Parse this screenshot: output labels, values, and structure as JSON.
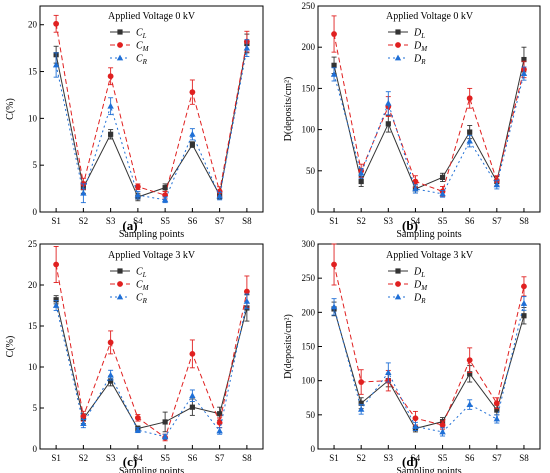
{
  "x_axis_title": "Sampling points",
  "panel_letters": [
    "(a)",
    "(b)",
    "(c)",
    "(d)"
  ],
  "colors": {
    "L": "#333333",
    "M": "#e02020",
    "R": "#1f6fd6"
  },
  "chart_data": [
    {
      "type": "line",
      "legend_title": "Applied Voltage 0 kV",
      "ylabel": "C(%)",
      "xlabel": "Sampling points",
      "categories": [
        "S1",
        "S2",
        "S3",
        "S4",
        "S5",
        "S6",
        "S7",
        "S8"
      ],
      "ylim": [
        0,
        22
      ],
      "yticks": [
        "0",
        "5",
        "10",
        "15",
        "20"
      ],
      "series": [
        {
          "name": "C",
          "sub": "L",
          "values": [
            16.8,
            2.6,
            8.3,
            1.6,
            2.6,
            7.2,
            1.8,
            18.0
          ],
          "err": [
            0.9,
            0.6,
            0.5,
            0.4,
            0.4,
            0.3,
            0.4,
            1.0
          ]
        },
        {
          "name": "C",
          "sub": "M",
          "values": [
            20.1,
            3.0,
            14.5,
            2.7,
            1.8,
            12.8,
            2.2,
            18.2
          ],
          "err": [
            0.9,
            0.6,
            0.9,
            0.3,
            0.4,
            1.3,
            0.5,
            1.1
          ]
        },
        {
          "name": "C",
          "sub": "R",
          "values": [
            15.7,
            2.0,
            11.3,
            1.8,
            1.3,
            8.3,
            1.7,
            17.5
          ],
          "err": [
            1.3,
            1.0,
            0.9,
            0.4,
            0.3,
            0.6,
            0.4,
            0.9
          ]
        }
      ]
    },
    {
      "type": "line",
      "legend_title": "Applied Voltage 0 kV",
      "ylabel": "D(deposits/cm²)",
      "xlabel": "Sampling points",
      "categories": [
        "S1",
        "S2",
        "S3",
        "S4",
        "S5",
        "S6",
        "S7",
        "S8"
      ],
      "ylim": [
        0,
        250
      ],
      "yticks": [
        "0",
        "50",
        "100",
        "150",
        "200",
        "250"
      ],
      "series": [
        {
          "name": "D",
          "sub": "L",
          "values": [
            178,
            37,
            107,
            28,
            42,
            97,
            37,
            185
          ],
          "err": [
            10,
            6,
            10,
            5,
            5,
            8,
            6,
            15
          ]
        },
        {
          "name": "D",
          "sub": "M",
          "values": [
            216,
            50,
            128,
            37,
            25,
            138,
            38,
            173
          ],
          "err": [
            22,
            8,
            12,
            7,
            6,
            12,
            6,
            10
          ]
        },
        {
          "name": "D",
          "sub": "R",
          "values": [
            167,
            47,
            132,
            28,
            22,
            86,
            33,
            168
          ],
          "err": [
            8,
            6,
            14,
            5,
            4,
            7,
            5,
            8
          ]
        }
      ]
    },
    {
      "type": "line",
      "legend_title": "Applied Voltage 3 kV",
      "ylabel": "C(%)",
      "xlabel": "Sampling points",
      "categories": [
        "S1",
        "S2",
        "S3",
        "S4",
        "S5",
        "S6",
        "S7",
        "S8"
      ],
      "ylim": [
        0,
        25
      ],
      "yticks": [
        "0",
        "5",
        "10",
        "15",
        "20",
        "25"
      ],
      "series": [
        {
          "name": "C",
          "sub": "L",
          "values": [
            18.2,
            3.7,
            8.3,
            2.5,
            3.3,
            5.1,
            4.3,
            17.2
          ],
          "err": [
            0.5,
            0.6,
            0.6,
            0.3,
            1.2,
            1.0,
            0.8,
            1.6
          ]
        },
        {
          "name": "C",
          "sub": "M",
          "values": [
            22.5,
            4.0,
            13.0,
            3.8,
            1.4,
            11.6,
            3.2,
            19.2
          ],
          "err": [
            2.2,
            0.6,
            1.4,
            0.4,
            0.4,
            1.7,
            0.6,
            1.9
          ]
        },
        {
          "name": "C",
          "sub": "R",
          "values": [
            17.5,
            3.1,
            9.0,
            2.3,
            1.5,
            6.5,
            2.2,
            18.0
          ],
          "err": [
            0.6,
            0.5,
            0.6,
            0.3,
            0.3,
            0.7,
            0.4,
            0.9
          ]
        }
      ]
    },
    {
      "type": "line",
      "legend_title": "Applied Voltage 3 kV",
      "ylabel": "D(deposits/cm²)",
      "xlabel": "Sampling points",
      "categories": [
        "S1",
        "S2",
        "S3",
        "S4",
        "S5",
        "S6",
        "S7",
        "S8"
      ],
      "ylim": [
        0,
        300
      ],
      "yticks": [
        "0",
        "50",
        "100",
        "150",
        "200",
        "250",
        "300"
      ],
      "series": [
        {
          "name": "D",
          "sub": "L",
          "values": [
            205,
            67,
            100,
            30,
            40,
            110,
            57,
            195
          ],
          "err": [
            10,
            8,
            9,
            5,
            6,
            12,
            7,
            12
          ]
        },
        {
          "name": "D",
          "sub": "M",
          "values": [
            270,
            98,
            100,
            45,
            35,
            130,
            67,
            238
          ],
          "err": [
            30,
            18,
            15,
            10,
            6,
            18,
            8,
            14
          ]
        },
        {
          "name": "D",
          "sub": "R",
          "values": [
            208,
            58,
            112,
            33,
            25,
            65,
            44,
            213
          ],
          "err": [
            12,
            7,
            14,
            6,
            6,
            7,
            6,
            10
          ]
        }
      ]
    }
  ]
}
